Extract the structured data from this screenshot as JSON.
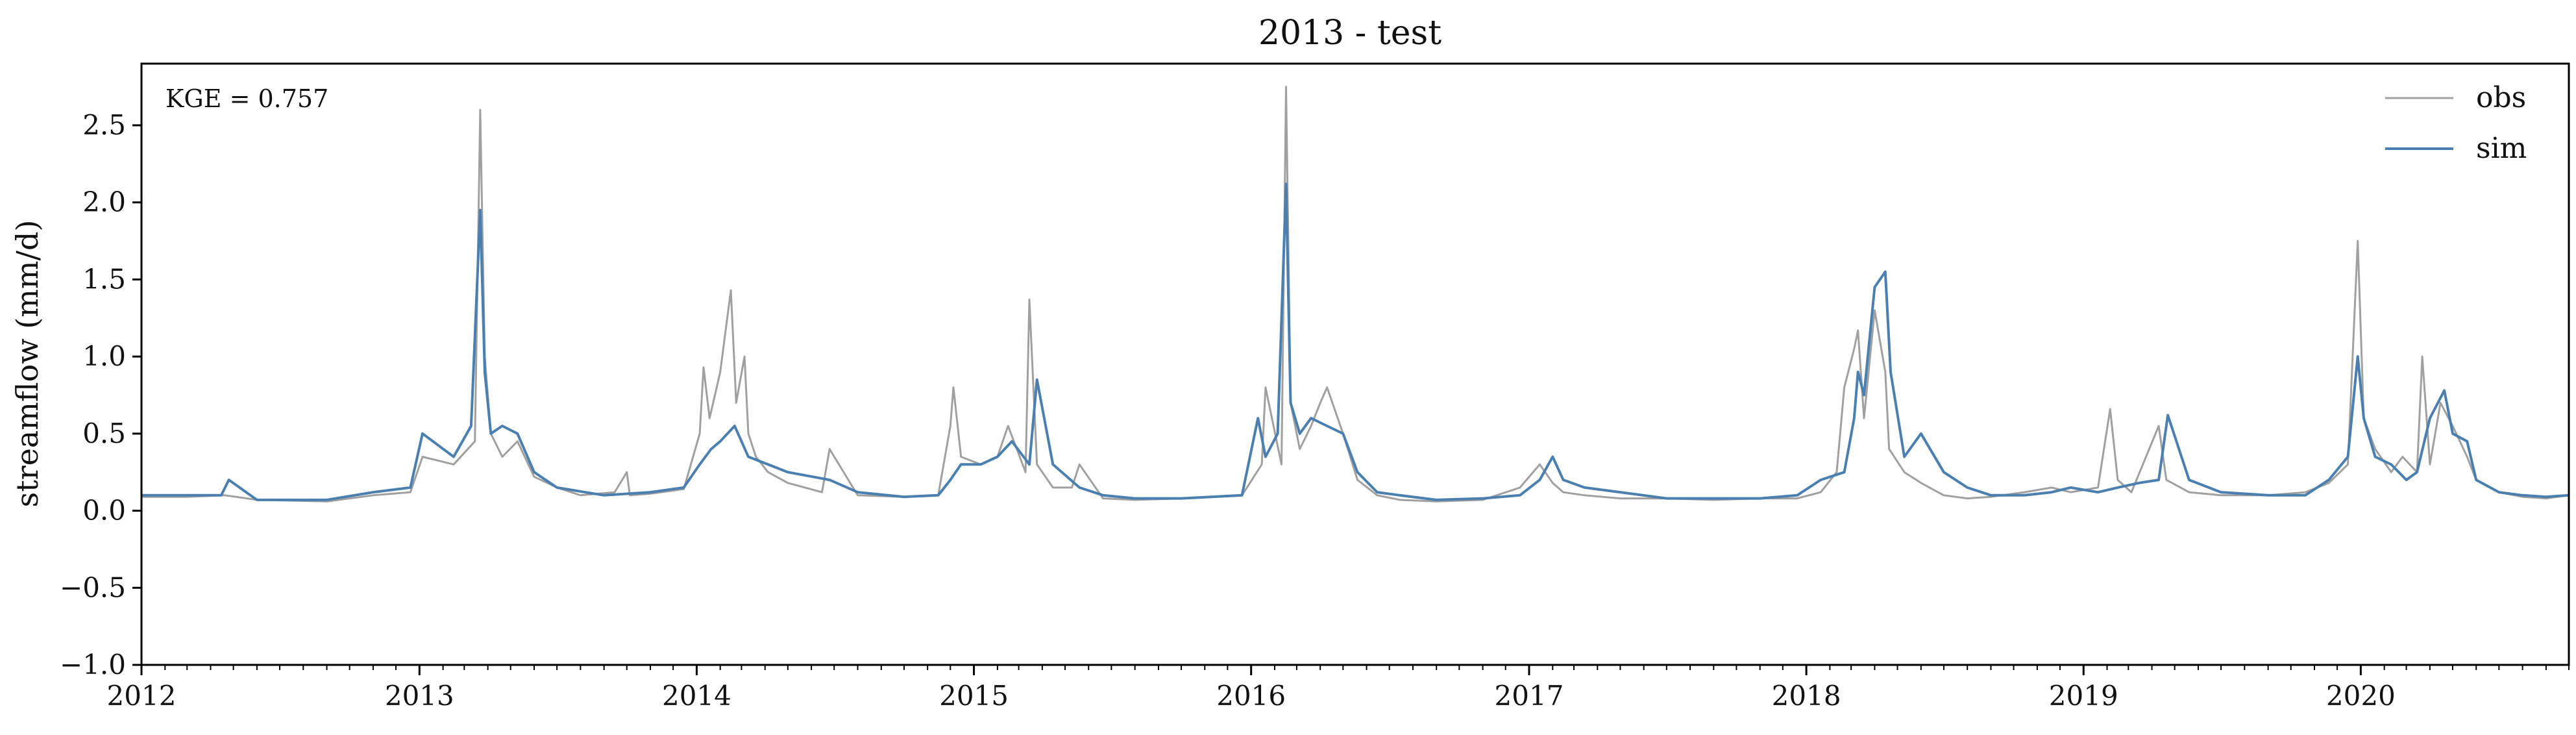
{
  "chart_data": {
    "type": "line",
    "title": "2013 - test",
    "xlabel": "",
    "ylabel": "streamflow (mm/d)",
    "xlim": [
      "2012-01-01",
      "2020-10-01"
    ],
    "ylim": [
      -1.0,
      2.9
    ],
    "x_ticks": [
      "2012",
      "2013",
      "2014",
      "2015",
      "2016",
      "2017",
      "2018",
      "2019",
      "2020"
    ],
    "y_ticks": [
      "−1.0",
      "−0.5",
      "0.0",
      "0.5",
      "1.0",
      "1.5",
      "2.0",
      "2.5"
    ],
    "annotation": "KGE = 0.757",
    "legend": {
      "position": "top-right"
    },
    "grid": false,
    "series": [
      {
        "name": "obs",
        "color": "#a0a0a0",
        "x": [
          "2012-01-01",
          "2012-03-01",
          "2012-04-20",
          "2012-06-01",
          "2012-09-01",
          "2012-11-01",
          "2012-12-20",
          "2013-01-05",
          "2013-02-15",
          "2013-03-15",
          "2013-03-22",
          "2013-03-28",
          "2013-04-05",
          "2013-04-20",
          "2013-05-10",
          "2013-06-01",
          "2013-07-01",
          "2013-08-01",
          "2013-09-15",
          "2013-10-01",
          "2013-10-05",
          "2013-11-01",
          "2013-12-15",
          "2014-01-05",
          "2014-01-10",
          "2014-01-18",
          "2014-02-01",
          "2014-02-15",
          "2014-02-22",
          "2014-03-05",
          "2014-03-10",
          "2014-03-20",
          "2014-04-05",
          "2014-05-01",
          "2014-06-15",
          "2014-06-25",
          "2014-08-01",
          "2014-10-01",
          "2014-11-15",
          "2014-12-01",
          "2014-12-05",
          "2014-12-15",
          "2015-01-10",
          "2015-02-01",
          "2015-02-15",
          "2015-03-10",
          "2015-03-15",
          "2015-03-25",
          "2015-04-15",
          "2015-05-10",
          "2015-05-20",
          "2015-06-20",
          "2015-08-01",
          "2015-10-01",
          "2015-12-20",
          "2016-01-15",
          "2016-01-20",
          "2016-02-10",
          "2016-02-16",
          "2016-02-22",
          "2016-03-05",
          "2016-03-20",
          "2016-04-01",
          "2016-04-10",
          "2016-05-01",
          "2016-05-20",
          "2016-06-15",
          "2016-07-15",
          "2016-09-01",
          "2016-11-01",
          "2016-12-20",
          "2017-01-15",
          "2017-02-01",
          "2017-02-15",
          "2017-03-15",
          "2017-05-01",
          "2017-07-01",
          "2017-09-01",
          "2017-11-01",
          "2017-12-20",
          "2018-01-20",
          "2018-02-10",
          "2018-02-20",
          "2018-03-05",
          "2018-03-10",
          "2018-03-18",
          "2018-04-01",
          "2018-04-15",
          "2018-04-20",
          "2018-05-10",
          "2018-06-01",
          "2018-07-01",
          "2018-08-01",
          "2018-09-01",
          "2018-10-15",
          "2018-11-20",
          "2018-12-15",
          "2019-01-20",
          "2019-02-05",
          "2019-02-15",
          "2019-03-05",
          "2019-04-10",
          "2019-04-20",
          "2019-05-20",
          "2019-07-01",
          "2019-09-01",
          "2019-10-20",
          "2019-11-20",
          "2019-12-15",
          "2019-12-28",
          "2020-01-05",
          "2020-01-20",
          "2020-02-10",
          "2020-02-25",
          "2020-03-15",
          "2020-03-22",
          "2020-04-01",
          "2020-04-15",
          "2020-05-01",
          "2020-05-20",
          "2020-06-01",
          "2020-07-01",
          "2020-08-01",
          "2020-09-01",
          "2020-10-01"
        ],
        "values": [
          0.09,
          0.09,
          0.1,
          0.07,
          0.06,
          0.1,
          0.12,
          0.35,
          0.3,
          0.45,
          2.6,
          1.0,
          0.5,
          0.35,
          0.45,
          0.22,
          0.15,
          0.1,
          0.12,
          0.25,
          0.1,
          0.11,
          0.14,
          0.5,
          0.93,
          0.6,
          0.9,
          1.43,
          0.7,
          1.0,
          0.5,
          0.35,
          0.25,
          0.18,
          0.12,
          0.4,
          0.1,
          0.09,
          0.1,
          0.55,
          0.8,
          0.35,
          0.3,
          0.35,
          0.55,
          0.25,
          1.37,
          0.3,
          0.15,
          0.15,
          0.3,
          0.08,
          0.07,
          0.08,
          0.1,
          0.3,
          0.8,
          0.3,
          2.75,
          0.7,
          0.4,
          0.55,
          0.7,
          0.8,
          0.5,
          0.2,
          0.1,
          0.07,
          0.06,
          0.07,
          0.15,
          0.3,
          0.18,
          0.12,
          0.1,
          0.08,
          0.08,
          0.07,
          0.08,
          0.08,
          0.12,
          0.25,
          0.8,
          1.05,
          1.17,
          0.6,
          1.3,
          0.9,
          0.4,
          0.25,
          0.18,
          0.1,
          0.08,
          0.09,
          0.12,
          0.15,
          0.12,
          0.15,
          0.66,
          0.2,
          0.12,
          0.55,
          0.2,
          0.12,
          0.1,
          0.1,
          0.12,
          0.18,
          0.3,
          1.75,
          0.6,
          0.4,
          0.25,
          0.35,
          0.25,
          1.0,
          0.3,
          0.7,
          0.55,
          0.35,
          0.2,
          0.12,
          0.09,
          0.08,
          0.1
        ]
      },
      {
        "name": "sim",
        "color": "#4a7fb0",
        "x": [
          "2012-01-01",
          "2012-03-01",
          "2012-04-15",
          "2012-04-25",
          "2012-06-01",
          "2012-09-01",
          "2012-11-01",
          "2012-12-20",
          "2013-01-05",
          "2013-02-15",
          "2013-03-10",
          "2013-03-22",
          "2013-03-28",
          "2013-04-05",
          "2013-04-20",
          "2013-05-10",
          "2013-06-01",
          "2013-07-01",
          "2013-09-01",
          "2013-11-01",
          "2013-12-15",
          "2014-01-05",
          "2014-01-20",
          "2014-02-01",
          "2014-02-20",
          "2014-03-10",
          "2014-04-05",
          "2014-05-01",
          "2014-06-25",
          "2014-08-01",
          "2014-10-01",
          "2014-11-15",
          "2014-12-01",
          "2014-12-15",
          "2015-01-10",
          "2015-02-01",
          "2015-02-20",
          "2015-03-15",
          "2015-03-25",
          "2015-04-15",
          "2015-05-20",
          "2015-06-20",
          "2015-08-01",
          "2015-10-01",
          "2015-12-20",
          "2016-01-10",
          "2016-01-20",
          "2016-02-05",
          "2016-02-16",
          "2016-02-22",
          "2016-03-05",
          "2016-03-20",
          "2016-04-10",
          "2016-05-01",
          "2016-05-20",
          "2016-06-15",
          "2016-07-15",
          "2016-09-01",
          "2016-11-01",
          "2016-12-20",
          "2017-01-15",
          "2017-02-01",
          "2017-02-15",
          "2017-03-15",
          "2017-05-01",
          "2017-07-01",
          "2017-09-01",
          "2017-11-01",
          "2017-12-20",
          "2018-01-20",
          "2018-02-20",
          "2018-03-05",
          "2018-03-10",
          "2018-03-18",
          "2018-04-01",
          "2018-04-15",
          "2018-04-22",
          "2018-05-10",
          "2018-06-01",
          "2018-07-01",
          "2018-08-01",
          "2018-09-01",
          "2018-10-15",
          "2018-11-20",
          "2018-12-15",
          "2019-01-20",
          "2019-02-15",
          "2019-03-15",
          "2019-04-10",
          "2019-04-22",
          "2019-05-20",
          "2019-07-01",
          "2019-09-01",
          "2019-10-20",
          "2019-11-20",
          "2019-12-15",
          "2019-12-28",
          "2020-01-05",
          "2020-01-20",
          "2020-02-10",
          "2020-03-01",
          "2020-03-15",
          "2020-04-01",
          "2020-04-20",
          "2020-05-01",
          "2020-05-20",
          "2020-06-01",
          "2020-07-01",
          "2020-08-01",
          "2020-09-01",
          "2020-10-01"
        ],
        "values": [
          0.1,
          0.1,
          0.1,
          0.2,
          0.07,
          0.07,
          0.12,
          0.15,
          0.5,
          0.35,
          0.55,
          1.95,
          0.9,
          0.5,
          0.55,
          0.5,
          0.25,
          0.15,
          0.1,
          0.12,
          0.15,
          0.3,
          0.4,
          0.45,
          0.55,
          0.35,
          0.3,
          0.25,
          0.2,
          0.12,
          0.09,
          0.1,
          0.2,
          0.3,
          0.3,
          0.35,
          0.45,
          0.3,
          0.85,
          0.3,
          0.15,
          0.1,
          0.08,
          0.08,
          0.1,
          0.6,
          0.35,
          0.5,
          2.12,
          0.7,
          0.5,
          0.6,
          0.55,
          0.5,
          0.25,
          0.12,
          0.1,
          0.07,
          0.08,
          0.1,
          0.2,
          0.35,
          0.2,
          0.15,
          0.12,
          0.08,
          0.08,
          0.08,
          0.1,
          0.2,
          0.25,
          0.6,
          0.9,
          0.75,
          1.45,
          1.55,
          0.9,
          0.35,
          0.5,
          0.25,
          0.15,
          0.1,
          0.1,
          0.12,
          0.15,
          0.12,
          0.15,
          0.18,
          0.2,
          0.62,
          0.2,
          0.12,
          0.1,
          0.1,
          0.2,
          0.35,
          1.0,
          0.6,
          0.35,
          0.3,
          0.2,
          0.25,
          0.6,
          0.78,
          0.5,
          0.45,
          0.2,
          0.12,
          0.1,
          0.09,
          0.1
        ]
      }
    ]
  }
}
